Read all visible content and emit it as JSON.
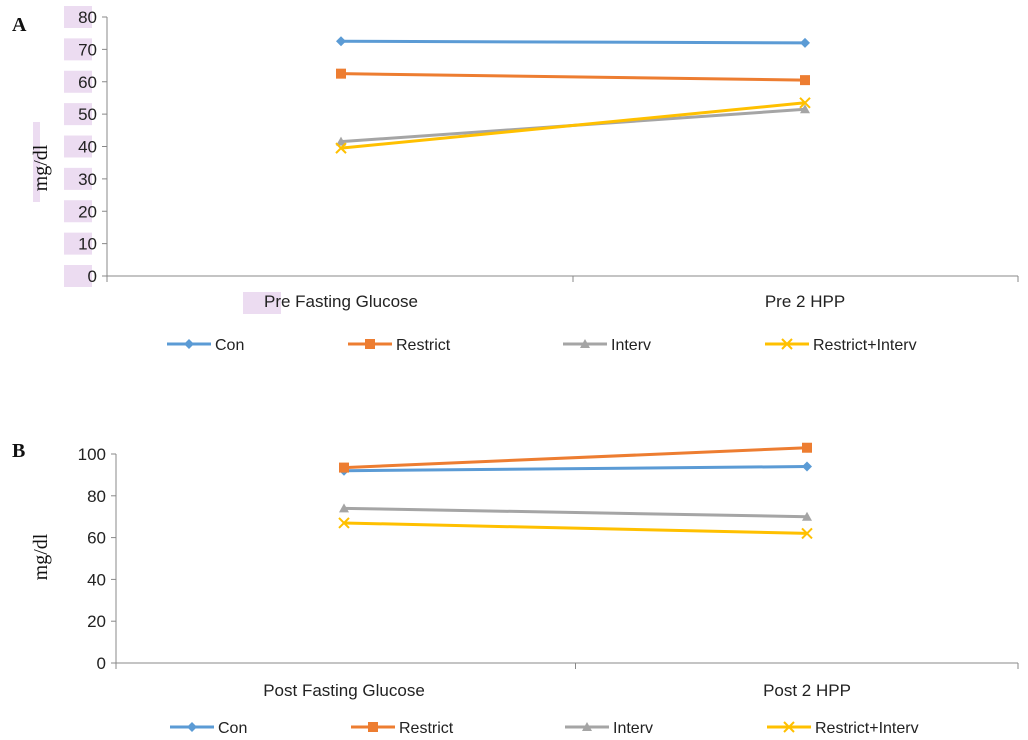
{
  "colors": {
    "Con": "#5b9bd5",
    "Restrict": "#ed7d31",
    "Interv": "#a5a5a5",
    "Restrict+Interv": "#ffc000"
  },
  "chart_data": [
    {
      "type": "line",
      "panel_label": "A",
      "ylabel": "mg/dl",
      "categories": [
        "Pre Fasting Glucose",
        "Pre 2 HPP"
      ],
      "ylim": [
        0,
        80
      ],
      "yticks": [
        0,
        10,
        20,
        30,
        40,
        50,
        60,
        70,
        80
      ],
      "grid": false,
      "legend": "bottom",
      "series": [
        {
          "name": "Con",
          "marker": "diamond",
          "values": [
            72.5,
            72
          ]
        },
        {
          "name": "Restrict",
          "marker": "square",
          "values": [
            62.5,
            60.5
          ]
        },
        {
          "name": "Interv",
          "marker": "triangle",
          "values": [
            41.5,
            51.5
          ]
        },
        {
          "name": "Restrict+Interv",
          "marker": "x",
          "values": [
            39.5,
            53.5
          ]
        }
      ]
    },
    {
      "type": "line",
      "panel_label": "B",
      "ylabel": "mg/dl",
      "categories": [
        "Post Fasting Glucose",
        "Post 2 HPP"
      ],
      "ylim": [
        0,
        100
      ],
      "yticks": [
        0,
        20,
        40,
        60,
        80,
        100
      ],
      "grid": false,
      "legend": "bottom",
      "series": [
        {
          "name": "Con",
          "marker": "diamond",
          "values": [
            92,
            94
          ]
        },
        {
          "name": "Restrict",
          "marker": "square",
          "values": [
            93.5,
            103
          ]
        },
        {
          "name": "Interv",
          "marker": "triangle",
          "values": [
            74,
            70
          ]
        },
        {
          "name": "Restrict+Interv",
          "marker": "x",
          "values": [
            67,
            62
          ]
        }
      ]
    }
  ]
}
